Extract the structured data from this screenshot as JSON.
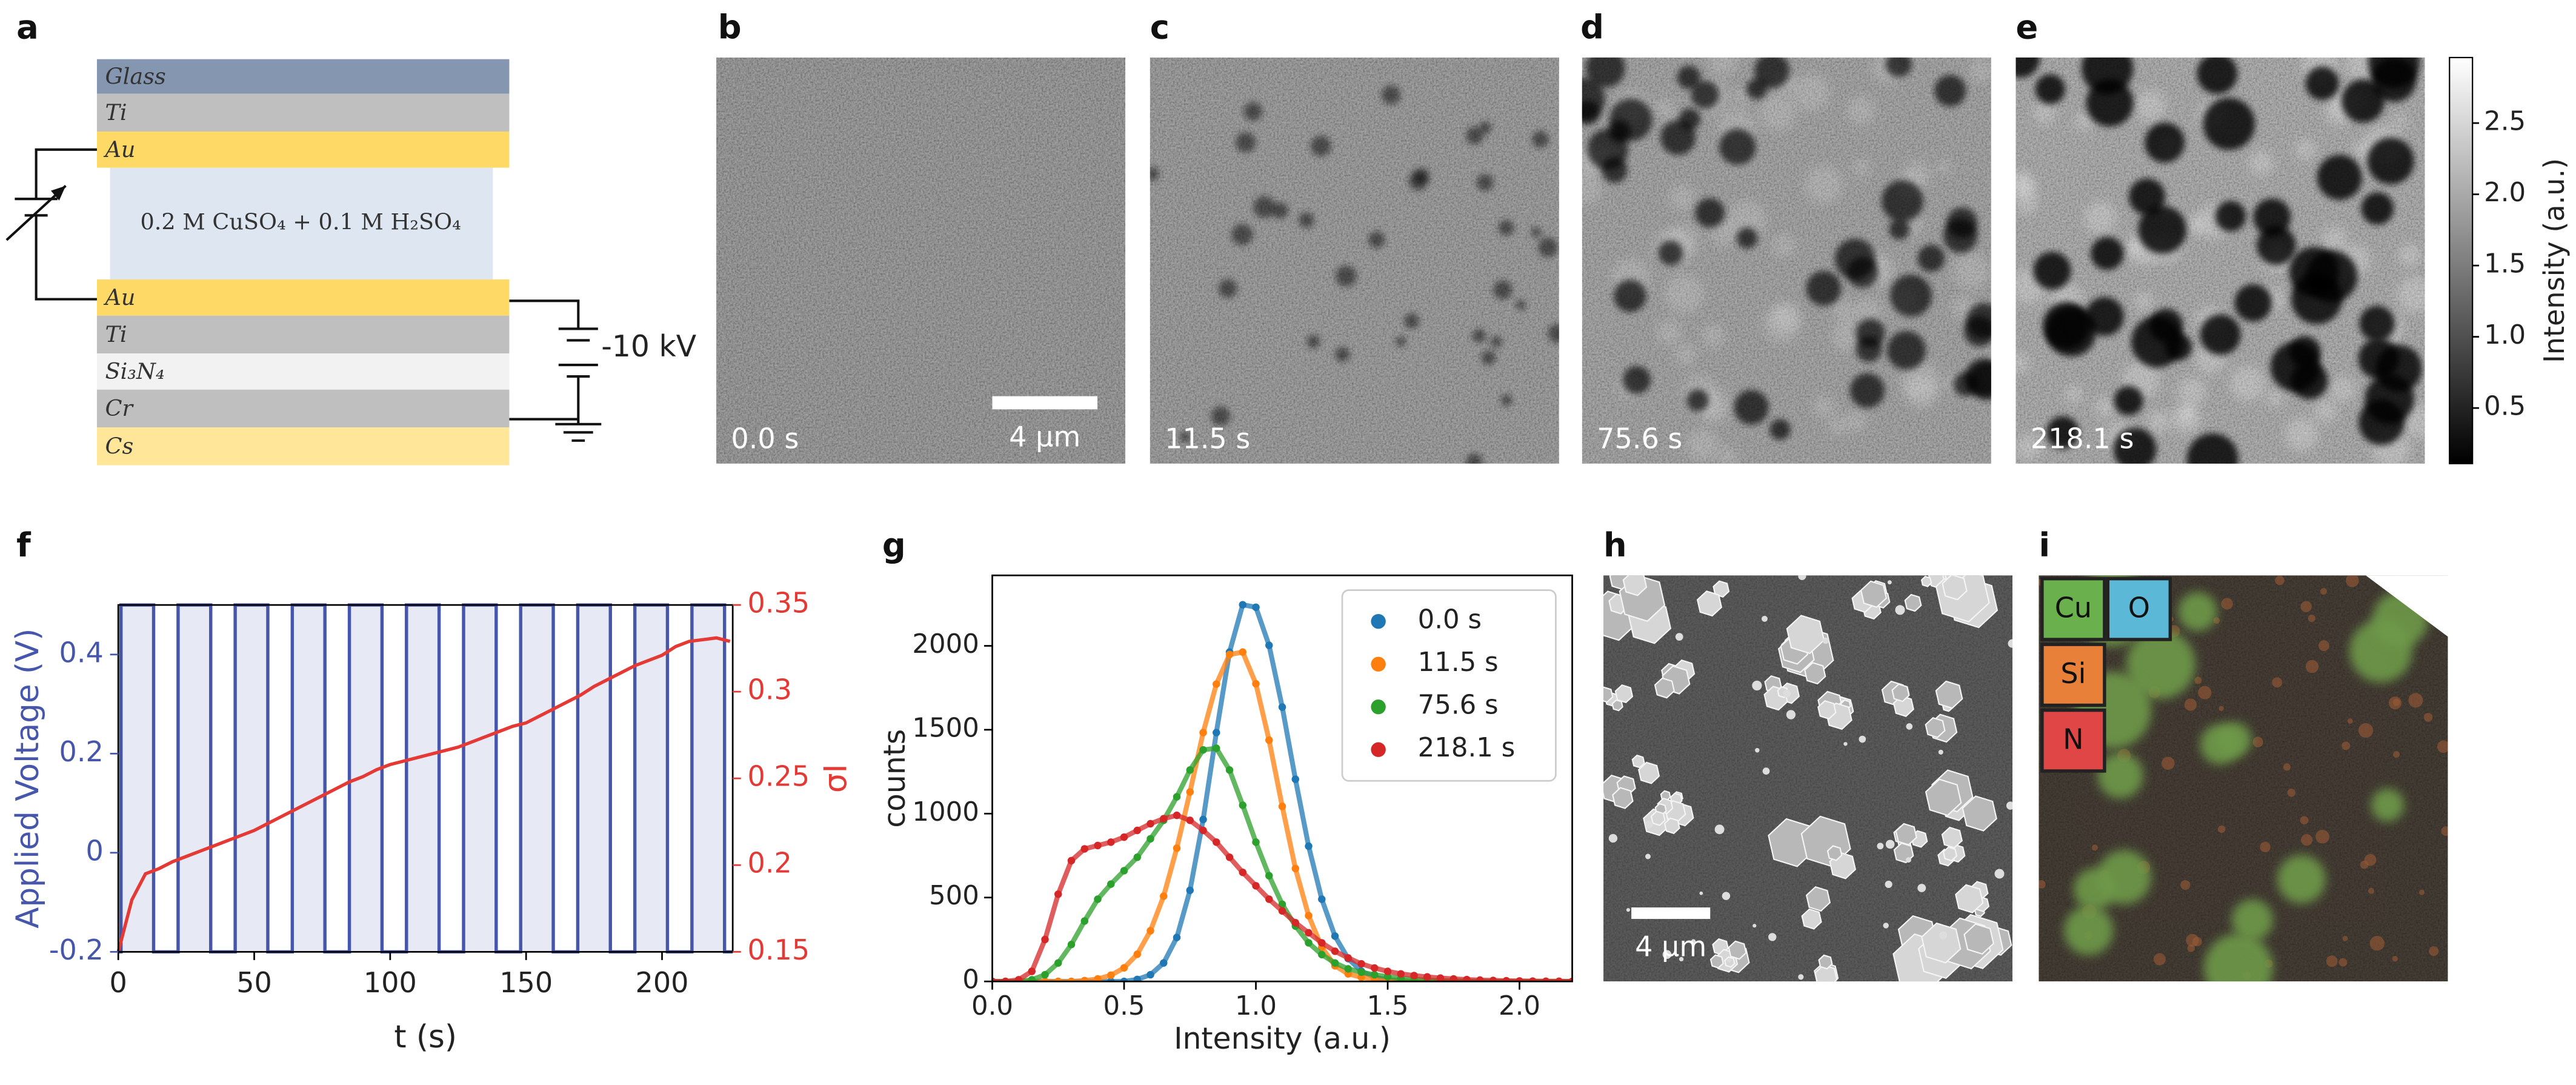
{
  "panel_labels": [
    "a",
    "b",
    "c",
    "d",
    "e",
    "f",
    "g",
    "h",
    "i"
  ],
  "diagram": {
    "layers": [
      "Glass",
      "Ti",
      "Au",
      "Au",
      "Ti",
      "Si₃N₄",
      "Cr",
      "Cs"
    ],
    "electrolyte": "0.2 M CuSO₄ + 0.1 M H₂SO₄",
    "voltage": "-10 kV"
  },
  "images": {
    "times": [
      "0.0 s",
      "11.5 s",
      "75.6 s",
      "218.1 s"
    ],
    "scale_bar": "4 µm",
    "colorbar": {
      "label": "Intensity (a.u.)",
      "lim": [
        0.11,
        2.96
      ],
      "ticks": [
        0.5,
        {
          "value": 1,
          "label": "1.0"
        },
        1.5,
        {
          "value": 2,
          "label": "2.0"
        },
        2.5
      ]
    }
  },
  "sem": {
    "scale_bar": "4 μm"
  },
  "eds": {
    "elements": [
      "Cu",
      "O",
      "Si",
      "N"
    ]
  },
  "chart_data": [
    {
      "type": "line",
      "x_label": "t (s)",
      "y_label": "Applied Voltage (V)",
      "y2_label": "σI",
      "xlim": [
        0,
        226
      ],
      "xticks": [
        0,
        50,
        100,
        150,
        200
      ],
      "ylim": [
        -0.2,
        0.5
      ],
      "yticks": [
        -0.2,
        0,
        0.2,
        0.4
      ],
      "y2lim": [
        0.15,
        0.35
      ],
      "y2ticks": [
        0.15,
        0.2,
        0.25,
        0.3,
        0.35
      ],
      "series": [
        {
          "color": "#4656aa",
          "fill": true,
          "x": [
            0,
            1,
            1,
            13,
            13,
            22,
            22,
            34,
            34,
            43,
            43,
            55,
            55,
            64,
            64,
            76,
            76,
            85,
            85,
            97,
            97,
            106,
            106,
            118,
            118,
            127,
            127,
            139,
            139,
            148,
            148,
            160,
            160,
            169,
            169,
            181,
            181,
            190,
            190,
            202,
            202,
            211,
            211,
            223,
            223,
            226
          ],
          "values": [
            -0.2,
            -0.2,
            0.5,
            0.5,
            -0.2,
            -0.2,
            0.5,
            0.5,
            -0.2,
            -0.2,
            0.5,
            0.5,
            -0.2,
            -0.2,
            0.5,
            0.5,
            -0.2,
            -0.2,
            0.5,
            0.5,
            -0.2,
            -0.2,
            0.5,
            0.5,
            -0.2,
            -0.2,
            0.5,
            0.5,
            -0.2,
            -0.2,
            0.5,
            0.5,
            -0.2,
            -0.2,
            0.5,
            0.5,
            -0.2,
            -0.2,
            0.5,
            0.5,
            -0.2,
            -0.2,
            0.5,
            0.5,
            -0.2,
            -0.2
          ]
        },
        {
          "color": "#e53935",
          "axis": "y2",
          "x": [
            0,
            5,
            10,
            15,
            20,
            25,
            30,
            35,
            40,
            45,
            50,
            55,
            60,
            65,
            70,
            75,
            80,
            85,
            90,
            95,
            100,
            105,
            110,
            115,
            120,
            125,
            130,
            135,
            140,
            145,
            150,
            155,
            160,
            165,
            170,
            175,
            180,
            185,
            190,
            195,
            200,
            205,
            210,
            215,
            220,
            225
          ],
          "values": [
            0.15,
            0.18,
            0.195,
            0.198,
            0.202,
            0.205,
            0.208,
            0.211,
            0.214,
            0.217,
            0.22,
            0.224,
            0.228,
            0.232,
            0.236,
            0.24,
            0.244,
            0.248,
            0.251,
            0.255,
            0.258,
            0.26,
            0.262,
            0.264,
            0.266,
            0.268,
            0.271,
            0.274,
            0.277,
            0.28,
            0.282,
            0.286,
            0.29,
            0.294,
            0.298,
            0.303,
            0.307,
            0.311,
            0.315,
            0.318,
            0.321,
            0.326,
            0.329,
            0.33,
            0.331,
            0.329
          ]
        }
      ]
    },
    {
      "type": "scatter",
      "x_label": "Intensity (a.u.)",
      "y_label": "counts",
      "xlim": [
        0,
        2.2
      ],
      "xticks": [
        {
          "value": 0,
          "label": "0.0"
        },
        0.5,
        {
          "value": 1,
          "label": "1.0"
        },
        1.5,
        {
          "value": 2,
          "label": "2.0"
        }
      ],
      "ylim": [
        0,
        2420
      ],
      "yticks": [
        0,
        500,
        1000,
        1500,
        2000
      ],
      "legend": "upper right",
      "x": [
        0,
        0.05,
        0.1,
        0.15,
        0.2,
        0.25,
        0.3,
        0.35,
        0.4,
        0.45,
        0.5,
        0.55,
        0.6,
        0.65,
        0.7,
        0.75,
        0.8,
        0.85,
        0.9,
        0.95,
        1,
        1.05,
        1.1,
        1.15,
        1.2,
        1.25,
        1.3,
        1.35,
        1.4,
        1.45,
        1.5,
        1.55,
        1.6,
        1.65,
        1.7,
        1.75,
        1.8,
        1.85,
        1.9,
        1.95,
        2,
        2.05,
        2.1,
        2.15,
        2.2
      ],
      "series": [
        {
          "name": "0.0 s",
          "color": "#1f77b4",
          "values": [
            0,
            0,
            0,
            0,
            0,
            0,
            0,
            0,
            0,
            0,
            0,
            12,
            40,
            110,
            262,
            543,
            965,
            1483,
            1963,
            2245,
            2230,
            2003,
            1635,
            1205,
            806,
            490,
            270,
            136,
            61,
            25,
            10,
            5,
            0,
            0,
            0,
            0,
            0,
            0,
            0,
            0,
            0,
            0,
            0,
            0,
            0
          ]
        },
        {
          "name": "11.5 s",
          "color": "#ff7f0e",
          "values": [
            0,
            0,
            0,
            0,
            0,
            0,
            0,
            5,
            15,
            37,
            81,
            162,
            302,
            508,
            794,
            1129,
            1483,
            1772,
            1948,
            1963,
            1774,
            1438,
            1043,
            673,
            392,
            204,
            93,
            45,
            25,
            12,
            6,
            0,
            0,
            0,
            0,
            0,
            0,
            0,
            0,
            0,
            0,
            0,
            0,
            0,
            0
          ]
        },
        {
          "name": "75.6 s",
          "color": "#2ca02c",
          "values": [
            0,
            0,
            0,
            10,
            40,
            110,
            220,
            360,
            490,
            580,
            660,
            740,
            850,
            960,
            1100,
            1260,
            1380,
            1390,
            1260,
            1050,
            830,
            630,
            460,
            330,
            230,
            160,
            110,
            75,
            55,
            40,
            28,
            18,
            12,
            8,
            5,
            3,
            2,
            0,
            0,
            0,
            0,
            0,
            0,
            0,
            0
          ]
        },
        {
          "name": "218.1 s",
          "color": "#d62728",
          "values": [
            0,
            0,
            10,
            60,
            250,
            520,
            720,
            790,
            810,
            830,
            860,
            900,
            940,
            970,
            990,
            960,
            900,
            830,
            740,
            650,
            570,
            490,
            420,
            350,
            290,
            230,
            180,
            140,
            105,
            80,
            60,
            45,
            35,
            27,
            20,
            15,
            11,
            8,
            6,
            4,
            3,
            2,
            1,
            1,
            0
          ]
        }
      ]
    }
  ]
}
